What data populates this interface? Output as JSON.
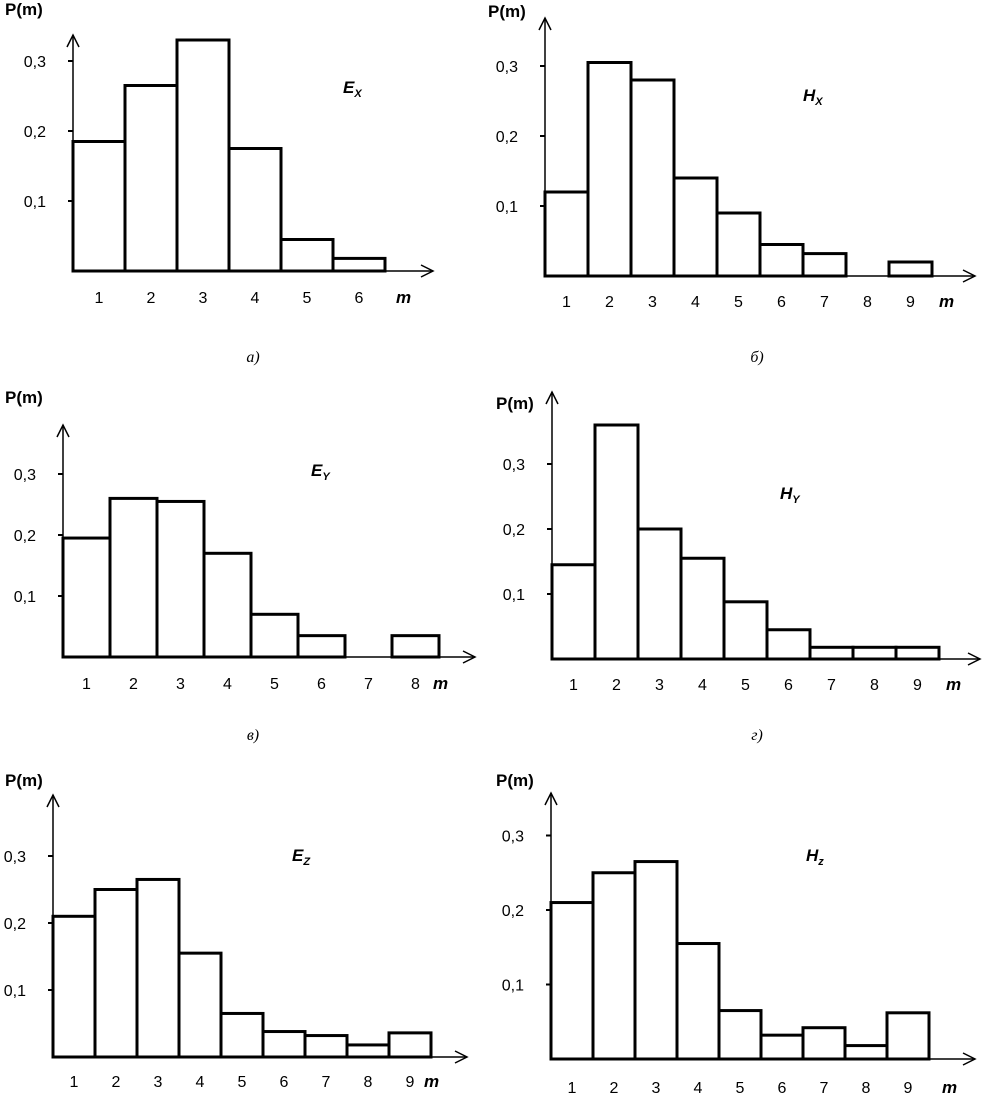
{
  "chart_data": [
    {
      "type": "bar",
      "title": "E",
      "title_sub": "X",
      "ylabel": "P(m)",
      "xlabel": "m",
      "caption": "а)",
      "categories": [
        "1",
        "2",
        "3",
        "4",
        "5",
        "6"
      ],
      "values": [
        0.185,
        0.265,
        0.33,
        0.175,
        0.045,
        0.018
      ],
      "yticks": [
        0.1,
        0.2,
        0.3
      ],
      "ytick_labels": [
        "0,1",
        "0,2",
        "0,3"
      ]
    },
    {
      "type": "bar",
      "title": "H",
      "title_sub": "X",
      "ylabel": "P(m)",
      "xlabel": "m",
      "caption": "б)",
      "categories": [
        "1",
        "2",
        "3",
        "4",
        "5",
        "6",
        "7",
        "8",
        "9"
      ],
      "values": [
        0.12,
        0.305,
        0.28,
        0.14,
        0.09,
        0.045,
        0.032,
        0,
        0.02
      ],
      "yticks": [
        0.1,
        0.2,
        0.3
      ],
      "ytick_labels": [
        "0,1",
        "0,2",
        "0,3"
      ]
    },
    {
      "type": "bar",
      "title": "E",
      "title_sub": "Y",
      "ylabel": "P(m)",
      "xlabel": "m",
      "caption": "в)",
      "categories": [
        "1",
        "2",
        "3",
        "4",
        "5",
        "6",
        "7",
        "8"
      ],
      "values": [
        0.195,
        0.26,
        0.255,
        0.17,
        0.07,
        0.035,
        0,
        0.035
      ],
      "yticks": [
        0.1,
        0.2,
        0.3
      ],
      "ytick_labels": [
        "0,1",
        "0,2",
        "0,3"
      ]
    },
    {
      "type": "bar",
      "title": "H",
      "title_sub": "Y",
      "ylabel": "P(m)",
      "xlabel": "m",
      "caption": "г)",
      "categories": [
        "1",
        "2",
        "3",
        "4",
        "5",
        "6",
        "7",
        "8",
        "9"
      ],
      "values": [
        0.145,
        0.36,
        0.2,
        0.155,
        0.088,
        0.045,
        0.018,
        0.018,
        0.018
      ],
      "yticks": [
        0.1,
        0.2,
        0.3
      ],
      "ytick_labels": [
        "0,1",
        "0,2",
        "0,3"
      ]
    },
    {
      "type": "bar",
      "title": "E",
      "title_sub": "Z",
      "ylabel": "P(m)",
      "xlabel": "m",
      "caption": "",
      "categories": [
        "1",
        "2",
        "3",
        "4",
        "5",
        "6",
        "7",
        "8",
        "9"
      ],
      "values": [
        0.21,
        0.25,
        0.265,
        0.155,
        0.065,
        0.038,
        0.032,
        0.018,
        0.036
      ],
      "yticks": [
        0.1,
        0.2,
        0.3
      ],
      "ytick_labels": [
        "0,1",
        "0,2",
        "0,3"
      ]
    },
    {
      "type": "bar",
      "title": "H",
      "title_sub": "z",
      "ylabel": "P(m)",
      "xlabel": "m",
      "caption": "",
      "categories": [
        "1",
        "2",
        "3",
        "4",
        "5",
        "6",
        "7",
        "8",
        "9"
      ],
      "values": [
        0.21,
        0.25,
        0.265,
        0.155,
        0.065,
        0.032,
        0.042,
        0.018,
        0.062
      ],
      "yticks": [
        0.1,
        0.2,
        0.3
      ],
      "ytick_labels": [
        "0,1",
        "0,2",
        "0,3"
      ]
    }
  ]
}
